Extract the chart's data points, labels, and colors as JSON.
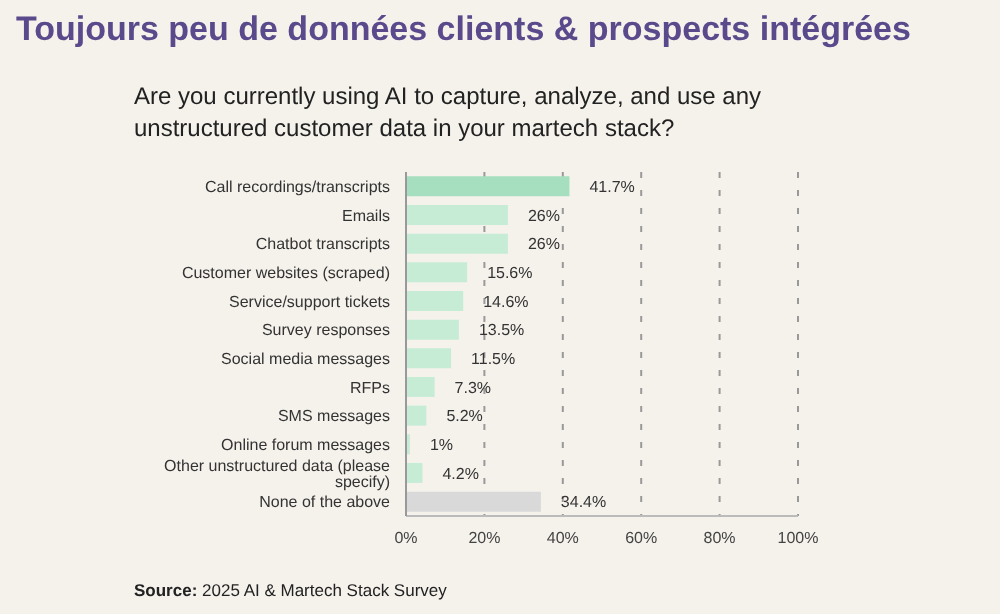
{
  "chart_data": {
    "type": "bar",
    "orientation": "horizontal",
    "title": "Toujours peu de données clients & prospects intégrées",
    "subtitle": "Are you currently using AI to capture, analyze, and use any unstructured customer data in your martech stack?",
    "categories": [
      "Call recordings/transcripts",
      "Emails",
      "Chatbot transcripts",
      "Customer websites (scraped)",
      "Service/support tickets",
      "Survey responses",
      "Social media messages",
      "RFPs",
      "SMS messages",
      "Online forum messages",
      "Other unstructured data (please specify)",
      "None of the above"
    ],
    "values": [
      41.7,
      26,
      26,
      15.6,
      14.6,
      13.5,
      11.5,
      7.3,
      5.2,
      1,
      4.2,
      34.4
    ],
    "value_labels": [
      "41.7%",
      "26%",
      "26%",
      "15.6%",
      "14.6%",
      "13.5%",
      "11.5%",
      "7.3%",
      "5.2%",
      "1%",
      "4.2%",
      "34.4%"
    ],
    "colors": [
      "#a6dfbf",
      "#c6ecd6",
      "#c6ecd6",
      "#c6ecd6",
      "#c6ecd6",
      "#c6ecd6",
      "#c6ecd6",
      "#c6ecd6",
      "#c6ecd6",
      "#c6ecd6",
      "#c6ecd6",
      "#d9d9d9"
    ],
    "xlim": [
      0,
      100
    ],
    "xticks": [
      {
        "value": 0,
        "label": "0%"
      },
      {
        "value": 20,
        "label": "20%"
      },
      {
        "value": 40,
        "label": "40%"
      },
      {
        "value": 60,
        "label": "60%"
      },
      {
        "value": 80,
        "label": "80%"
      },
      {
        "value": 100,
        "label": "100%"
      }
    ],
    "grid": "x",
    "annotations": [
      "Source: 2025 AI & Martech Stack Survey"
    ]
  }
}
